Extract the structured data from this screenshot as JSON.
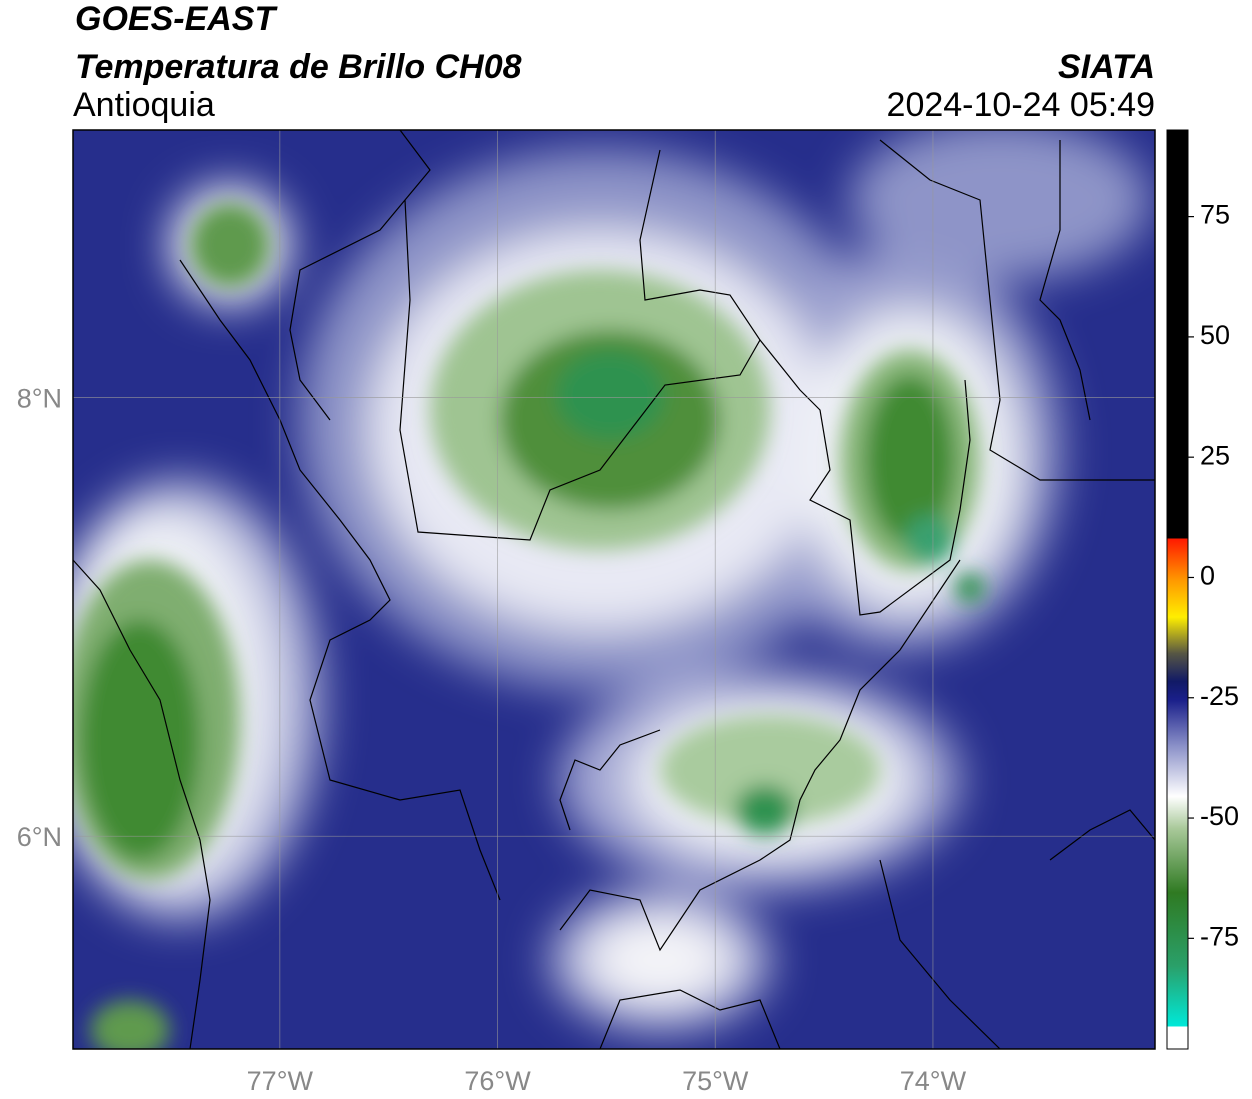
{
  "header": {
    "satellite": "GOES-EAST",
    "product": "Temperatura de Brillo CH08",
    "region": "Antioquia",
    "source": "SIATA",
    "datetime": "2024-10-24 05:49"
  },
  "map": {
    "xlim": [
      -77.95,
      -72.98
    ],
    "ylim": [
      5.03,
      9.22
    ],
    "xticks": [
      {
        "value": -77,
        "label": "77°W"
      },
      {
        "value": -76,
        "label": "76°W"
      },
      {
        "value": -75,
        "label": "75°W"
      },
      {
        "value": -74,
        "label": "74°W"
      }
    ],
    "yticks": [
      {
        "value": 6,
        "label": "6°N"
      },
      {
        "value": 8,
        "label": "8°N"
      }
    ],
    "grid": true
  },
  "colorbar": {
    "lim": [
      -98,
      93
    ],
    "ticks": [
      75,
      50,
      25,
      0,
      -25,
      -50,
      -75
    ]
  }
}
